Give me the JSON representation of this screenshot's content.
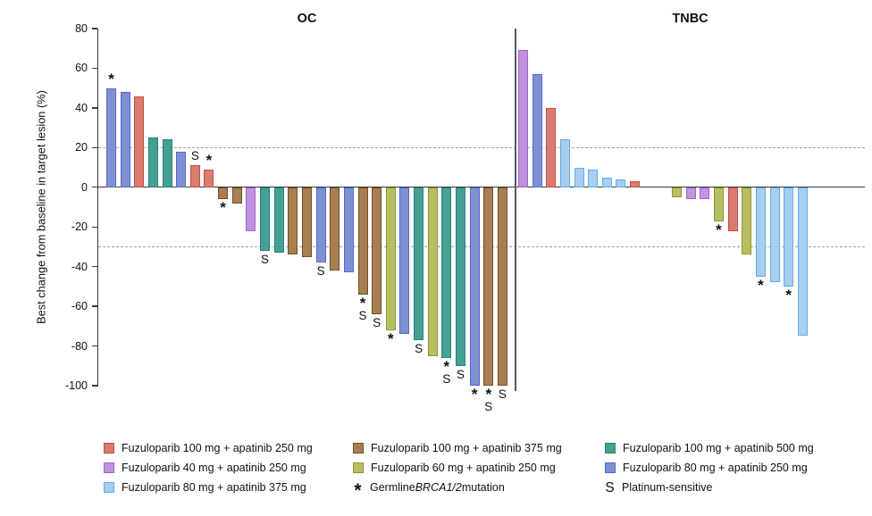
{
  "chart_data": {
    "type": "bar",
    "title": "",
    "ylabel": "Best change from baseline in target lesion (%)",
    "ylim": [
      -100,
      80
    ],
    "yticks": [
      80,
      60,
      40,
      20,
      0,
      -20,
      -40,
      -60,
      -80,
      -100
    ],
    "reference_lines": [
      20,
      -30
    ],
    "grid": "off",
    "legend_position": "bottom",
    "groups": {
      "fz100_ap250": {
        "label": "Fuzuloparib 100 mg + apatinib 250 mg",
        "fill": "#dd7a6e",
        "stroke": "#bf4e49"
      },
      "fz100_ap375": {
        "label": "Fuzuloparib 100 mg + apatinib 375 mg",
        "fill": "#a97f52",
        "stroke": "#6f4f28"
      },
      "fz100_ap500": {
        "label": "Fuzuloparib 100 mg + apatinib 500 mg",
        "fill": "#44a093",
        "stroke": "#2c8175"
      },
      "fz40_ap250": {
        "label": "Fuzuloparib 40 mg + apatinib 250 mg",
        "fill": "#bf93dd",
        "stroke": "#a264cf"
      },
      "fz60_ap250": {
        "label": "Fuzuloparib 60 mg + apatinib 250 mg",
        "fill": "#b8be62",
        "stroke": "#8f962e"
      },
      "fz80_ap250": {
        "label": "Fuzuloparib 80 mg + apatinib 250 mg",
        "fill": "#7e91ce",
        "stroke": "#5465dc"
      },
      "fz80_ap375": {
        "label": "Fuzuloparib 80 mg + apatinib 375 mg",
        "fill": "#a5cef1",
        "stroke": "#63ace7"
      }
    },
    "markers": {
      "star": {
        "symbol": "*",
        "label_prefix": "Germline ",
        "label_italic": "BRCA1/2",
        "label_suffix": " mutation"
      },
      "s": {
        "symbol": "S",
        "label": "Platinum-sensitive"
      }
    },
    "panels": [
      {
        "title": "OC",
        "bars": [
          {
            "value": 50,
            "group": "fz80_ap250",
            "marks": [
              "star"
            ]
          },
          {
            "value": 48,
            "group": "fz80_ap250"
          },
          {
            "value": 46,
            "group": "fz100_ap250"
          },
          {
            "value": 25,
            "group": "fz100_ap500"
          },
          {
            "value": 24,
            "group": "fz100_ap500"
          },
          {
            "value": 18,
            "group": "fz80_ap250"
          },
          {
            "value": 11,
            "group": "fz100_ap250",
            "marks": [
              "s"
            ]
          },
          {
            "value": 9,
            "group": "fz100_ap250",
            "marks": [
              "star"
            ]
          },
          {
            "value": -6,
            "group": "fz100_ap375",
            "marks": [
              "star"
            ]
          },
          {
            "value": -8,
            "group": "fz100_ap375"
          },
          {
            "value": -22,
            "group": "fz40_ap250"
          },
          {
            "value": -32,
            "group": "fz100_ap500",
            "marks": [
              "s"
            ]
          },
          {
            "value": -33,
            "group": "fz100_ap500"
          },
          {
            "value": -34,
            "group": "fz100_ap375"
          },
          {
            "value": -35,
            "group": "fz100_ap375"
          },
          {
            "value": -38,
            "group": "fz80_ap250",
            "marks": [
              "s"
            ]
          },
          {
            "value": -42,
            "group": "fz100_ap375"
          },
          {
            "value": -43,
            "group": "fz80_ap250"
          },
          {
            "value": -54,
            "group": "fz100_ap375",
            "marks": [
              "star",
              "s"
            ]
          },
          {
            "value": -64,
            "group": "fz100_ap375",
            "marks": [
              "s"
            ]
          },
          {
            "value": -72,
            "group": "fz60_ap250",
            "marks": [
              "star"
            ]
          },
          {
            "value": -74,
            "group": "fz80_ap250"
          },
          {
            "value": -77,
            "group": "fz100_ap500",
            "marks": [
              "s"
            ]
          },
          {
            "value": -85,
            "group": "fz60_ap250"
          },
          {
            "value": -86,
            "group": "fz100_ap500",
            "marks": [
              "star",
              "s"
            ]
          },
          {
            "value": -90,
            "group": "fz100_ap500",
            "marks": [
              "s"
            ]
          },
          {
            "value": -100,
            "group": "fz80_ap250",
            "marks": [
              "star"
            ]
          },
          {
            "value": -100,
            "group": "fz100_ap375",
            "marks": [
              "star",
              "s"
            ]
          },
          {
            "value": -100,
            "group": "fz100_ap375",
            "marks": [
              "s"
            ]
          }
        ]
      },
      {
        "title": "TNBC",
        "empty_slots_after_bar": 9,
        "empty_slot_count": 2,
        "bars": [
          {
            "value": 69,
            "group": "fz40_ap250"
          },
          {
            "value": 57,
            "group": "fz80_ap250"
          },
          {
            "value": 40,
            "group": "fz100_ap250"
          },
          {
            "value": 24,
            "group": "fz80_ap375"
          },
          {
            "value": 10,
            "group": "fz80_ap375"
          },
          {
            "value": 9,
            "group": "fz80_ap375"
          },
          {
            "value": 5,
            "group": "fz80_ap375"
          },
          {
            "value": 4,
            "group": "fz80_ap375"
          },
          {
            "value": 3,
            "group": "fz100_ap250"
          },
          {
            "value": -5,
            "group": "fz60_ap250"
          },
          {
            "value": -6,
            "group": "fz40_ap250"
          },
          {
            "value": -6,
            "group": "fz40_ap250"
          },
          {
            "value": -17,
            "group": "fz60_ap250",
            "marks": [
              "star"
            ]
          },
          {
            "value": -22,
            "group": "fz100_ap250"
          },
          {
            "value": -34,
            "group": "fz60_ap250"
          },
          {
            "value": -45,
            "group": "fz80_ap375",
            "marks": [
              "star"
            ]
          },
          {
            "value": -48,
            "group": "fz80_ap375"
          },
          {
            "value": -50,
            "group": "fz80_ap375",
            "marks": [
              "star"
            ]
          },
          {
            "value": -75,
            "group": "fz80_ap375"
          }
        ]
      }
    ]
  },
  "legend": {
    "columns": [
      {
        "items": [
          {
            "type": "swatch",
            "group": "fz100_ap250"
          },
          {
            "type": "swatch",
            "group": "fz40_ap250"
          },
          {
            "type": "swatch",
            "group": "fz80_ap375"
          }
        ]
      },
      {
        "items": [
          {
            "type": "swatch",
            "group": "fz100_ap375"
          },
          {
            "type": "swatch",
            "group": "fz60_ap250"
          },
          {
            "type": "marker",
            "marker": "star"
          }
        ]
      },
      {
        "items": [
          {
            "type": "swatch",
            "group": "fz100_ap500"
          },
          {
            "type": "swatch",
            "group": "fz80_ap250"
          },
          {
            "type": "marker",
            "marker": "s"
          }
        ]
      }
    ]
  }
}
